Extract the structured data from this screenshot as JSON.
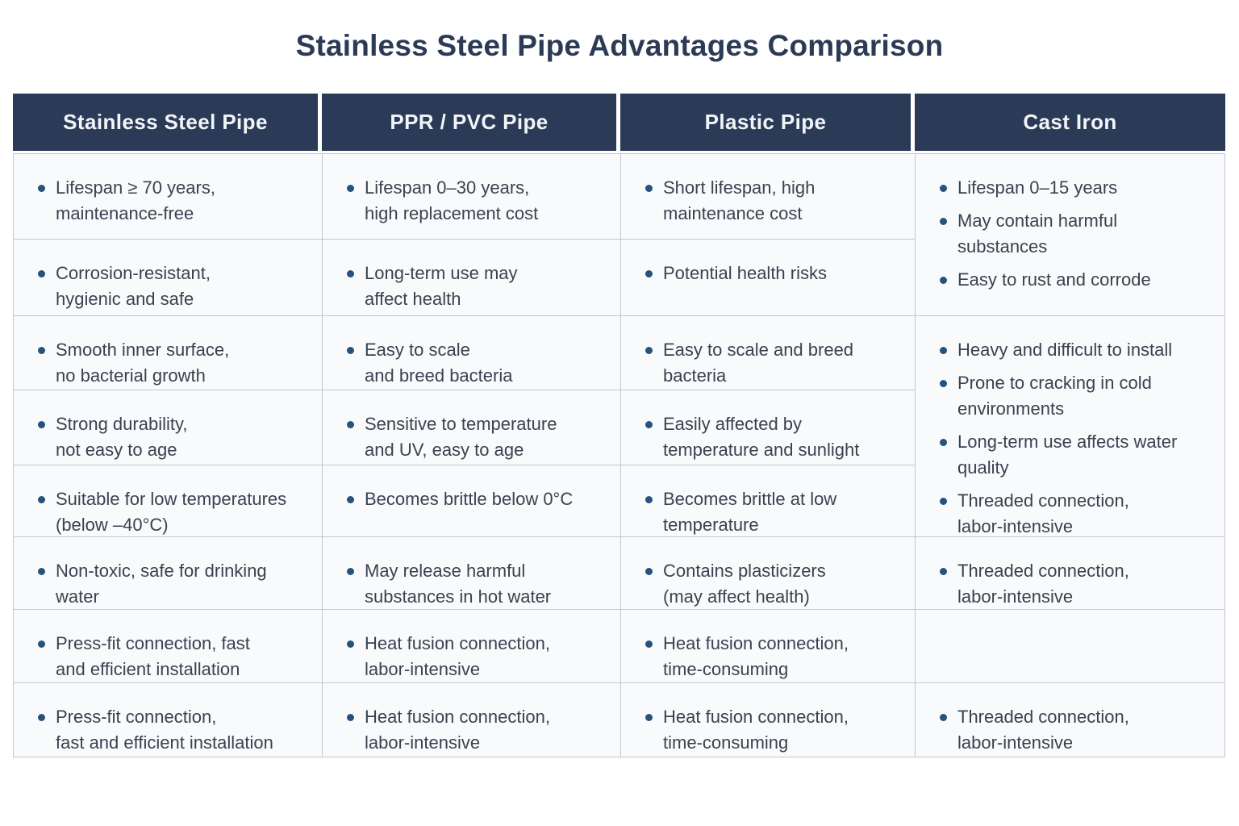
{
  "page": {
    "title": "Stainless Steel Pipe Advantages Comparison"
  },
  "colors": {
    "header_bg": "#2b3b57",
    "title_text": "#2b3a55",
    "bullet": "#26527d",
    "body_text": "#3a4250",
    "border": "#c2c7d0",
    "cell_bg": "#f9fafb"
  },
  "table": {
    "headers": [
      "Stainless Steel Pipe",
      "PPR / PVC Pipe",
      "Plastic Pipe",
      "Cast Iron"
    ],
    "columns": {
      "stainless": [
        "Lifespan ≥ 70 years,\nmaintenance-free",
        "Corrosion-resistant,\nhygienic and safe",
        "Smooth inner surface,\nno bacterial growth",
        "Strong durability,\nnot easy to age",
        "Suitable for low temperatures\n(below –40°C)",
        "Non-toxic, safe for drinking\nwater",
        "Press-fit connection, fast\nand efficient installation",
        "Press-fit connection,\nfast and efficient installation"
      ],
      "ppr_pvc": [
        "Lifespan 0–30 years,\nhigh replacement cost",
        "Long-term use may\naffect health",
        "Easy to scale\nand breed bacteria",
        "Sensitive to temperature\nand UV, easy to age",
        "Becomes brittle below 0°C",
        "May release harmful\nsubstances in hot water",
        "Heat fusion connection,\nlabor-intensive",
        "Heat fusion connection,\nlabor-intensive"
      ],
      "plastic": [
        "Short lifespan, high\nmaintenance cost",
        "Potential health risks",
        "Easy to scale and breed\nbacteria",
        "Easily affected by\ntemperature and sunlight",
        "Becomes brittle at low\ntemperature",
        "Contains plasticizers\n(may affect health)",
        "Heat fusion connection,\ntime-consuming",
        "Heat fusion connection,\ntime-consuming"
      ],
      "cast_iron": {
        "cell_a": [
          "Lifespan 0–15 years",
          "May contain harmful\nsubstances",
          "Easy to rust and corrode"
        ],
        "cell_b": [
          "Heavy and difficult to install",
          "Prone to cracking in cold\nenvironments",
          "Long-term use affects water\nquality",
          "Threaded connection,\nlabor-intensive"
        ],
        "cell_c": [
          "Threaded connection,\nlabor-intensive"
        ],
        "cell_e": [
          "Threaded connection,\nlabor-intensive"
        ]
      }
    }
  }
}
